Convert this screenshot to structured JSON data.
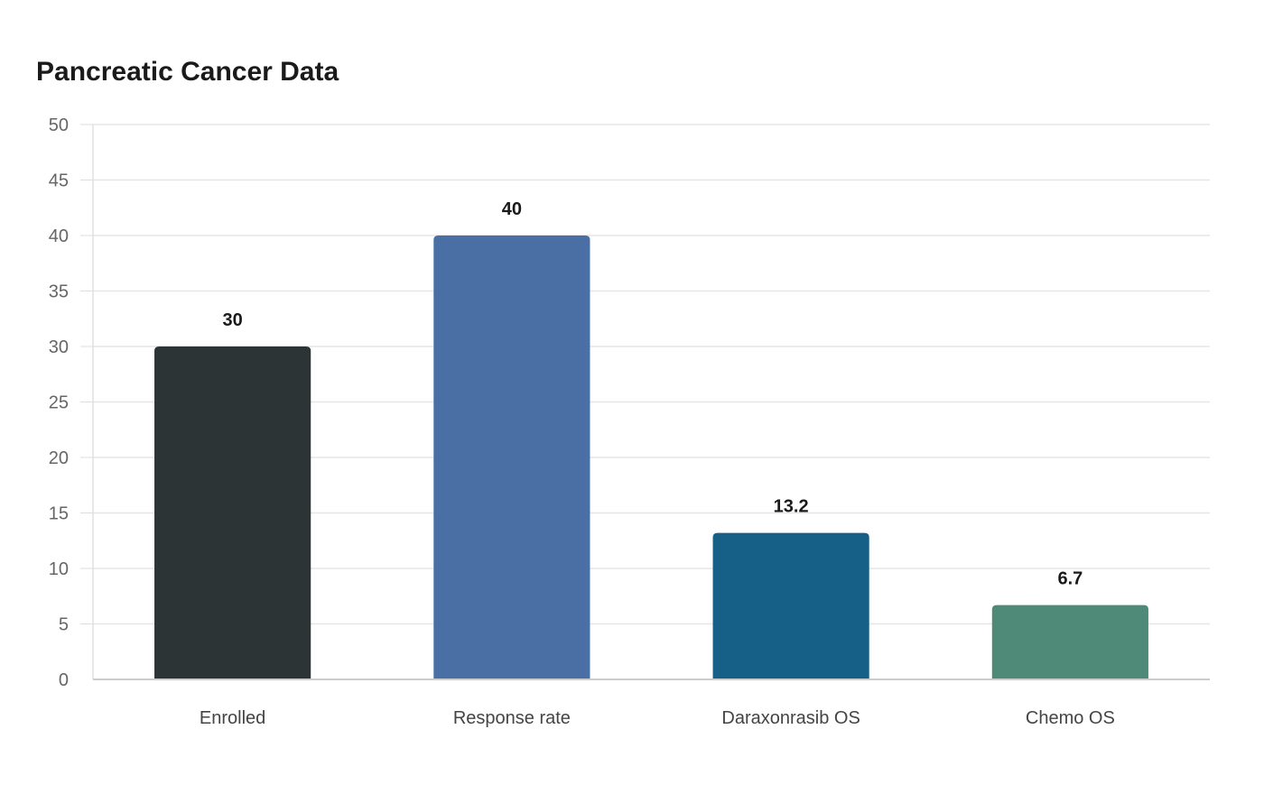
{
  "chart_data": {
    "type": "bar",
    "title": "Pancreatic Cancer Data",
    "categories": [
      "Enrolled",
      "Response rate",
      "Daraxonrasib OS",
      "Chemo OS"
    ],
    "values": [
      30,
      40,
      13.2,
      6.7
    ],
    "value_labels": [
      "30",
      "40",
      "13.2",
      "6.7"
    ],
    "colors": [
      "#2d3436",
      "#4a6fa5",
      "#166088",
      "#4f8a78"
    ],
    "ylim": [
      0,
      50
    ],
    "yticks": [
      0,
      5,
      10,
      15,
      20,
      25,
      30,
      35,
      40,
      45,
      50
    ],
    "grid": true,
    "legend": "none"
  }
}
